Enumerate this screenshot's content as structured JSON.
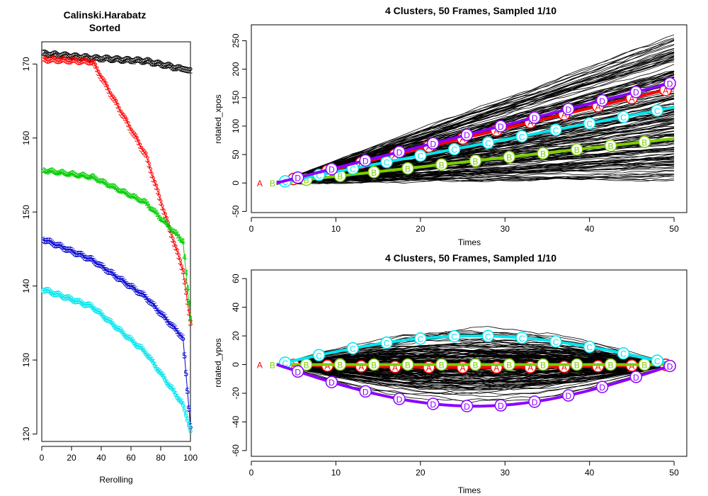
{
  "chart_data": [
    {
      "type": "line",
      "title": "Calinski.Harabatz\nSorted",
      "title_lines": [
        "Calinski.Harabatz",
        "Sorted"
      ],
      "xlabel": "Rerolling",
      "ylabel": "",
      "xlim": [
        0,
        100
      ],
      "ylim": [
        119,
        173
      ],
      "xticks": [
        0,
        20,
        40,
        60,
        80,
        100
      ],
      "yticks": [
        120,
        130,
        140,
        150,
        160,
        170
      ],
      "grid": false,
      "series": [
        {
          "symbol": "2",
          "color": "#000000",
          "values": [
            171.4,
            170.8,
            170.4,
            169.3,
            169.1
          ]
        },
        {
          "symbol": "3",
          "color": "#ff0000",
          "values": [
            170.6,
            170.3,
            157.6,
            142.0,
            135.0
          ]
        },
        {
          "symbol": "4",
          "color": "#00cd00",
          "values": [
            155.6,
            154.7,
            151.2,
            146.0,
            135.5
          ]
        },
        {
          "symbol": "5",
          "color": "#0000cd",
          "values": [
            146.3,
            143.5,
            138.5,
            133.0,
            121.0
          ]
        },
        {
          "symbol": "6",
          "color": "#00e5ee",
          "values": [
            139.5,
            137.2,
            131.0,
            124.0,
            120.5
          ]
        }
      ]
    },
    {
      "type": "line",
      "title": "4 Clusters, 50 Frames, Sampled 1/10",
      "xlabel": "Times",
      "ylabel": "rotated_xpos",
      "xlim": [
        0,
        51.5
      ],
      "ylim": [
        -52,
        278
      ],
      "xticks": [
        0,
        10,
        20,
        30,
        40,
        50
      ],
      "yticks": [
        -50,
        0,
        50,
        100,
        150,
        200,
        250
      ],
      "grid": false,
      "background_traces": "many thin black trajectories",
      "series": [
        {
          "label": "A",
          "color": "#ff0000",
          "y_start": 0,
          "y_end": 167
        },
        {
          "label": "B",
          "color": "#7ccd00",
          "y_start": 0,
          "y_end": 78
        },
        {
          "label": "C",
          "color": "#00e5ee",
          "y_start": 0,
          "y_end": 133
        },
        {
          "label": "D",
          "color": "#8b00ff",
          "y_start": 0,
          "y_end": 177
        }
      ]
    },
    {
      "type": "line",
      "title": "4 Clusters, 50 Frames, Sampled 1/10",
      "xlabel": "Times",
      "ylabel": "rotated_ypos",
      "xlim": [
        0,
        51.5
      ],
      "ylim": [
        -64,
        66
      ],
      "xticks": [
        0,
        10,
        20,
        30,
        40,
        50
      ],
      "yticks": [
        -60,
        -40,
        -20,
        0,
        20,
        40,
        60
      ],
      "grid": false,
      "background_traces": "many thin black trajectories",
      "series": [
        {
          "label": "A",
          "color": "#ff0000",
          "y_peak": -2
        },
        {
          "label": "B",
          "color": "#7ccd00",
          "y_peak": 0
        },
        {
          "label": "C",
          "color": "#00e5ee",
          "y_peak": 20
        },
        {
          "label": "D",
          "color": "#8b00ff",
          "y_peak": -29
        }
      ]
    }
  ]
}
